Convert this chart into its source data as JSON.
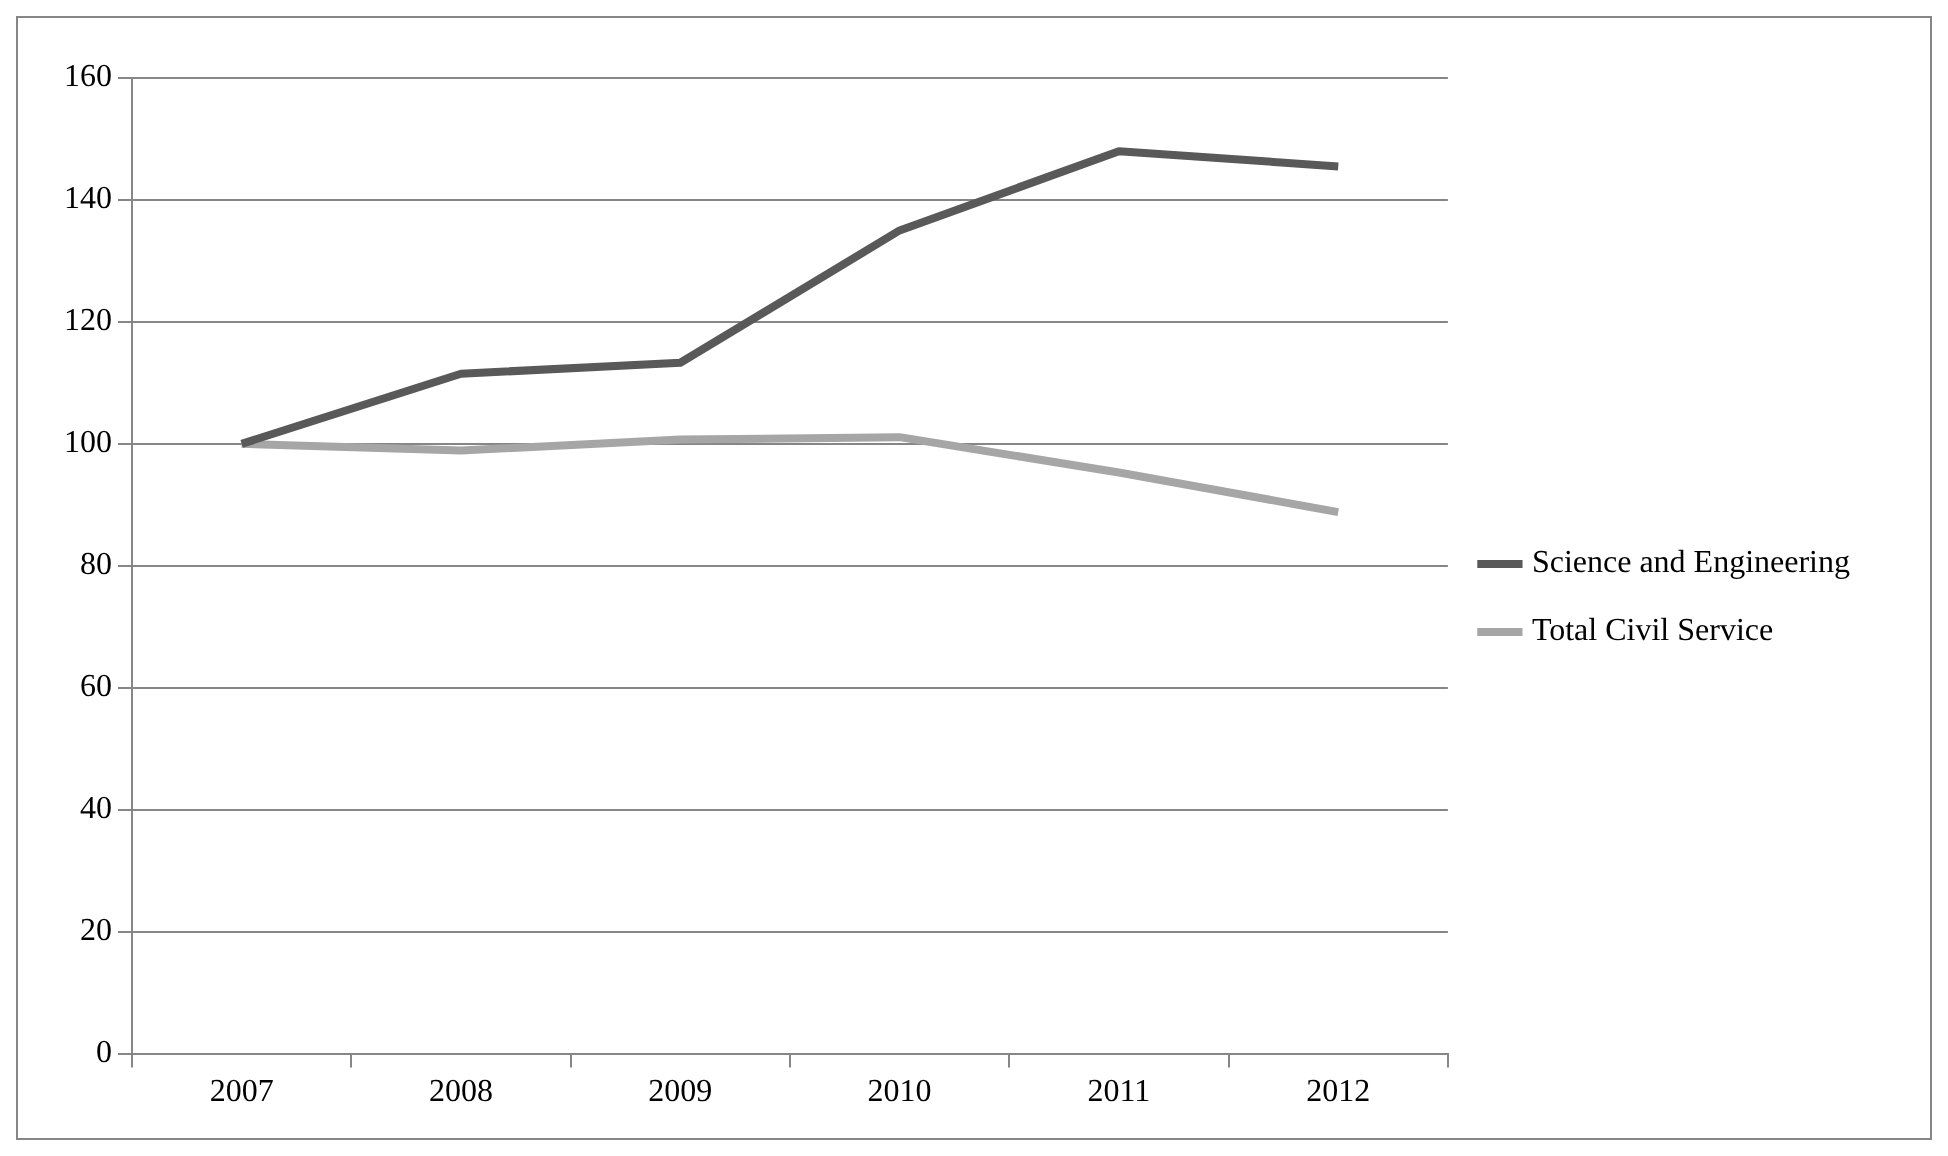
{
  "chart_data": {
    "type": "line",
    "categories": [
      "2007",
      "2008",
      "2009",
      "2010",
      "2011",
      "2012"
    ],
    "series": [
      {
        "name": "Science and Engineering",
        "color": "#595959",
        "values": [
          100,
          111.5,
          113.3,
          135,
          148,
          145.5
        ]
      },
      {
        "name": "Total Civil Service",
        "color": "#a6a6a6",
        "values": [
          100,
          98.9,
          100.7,
          101.1,
          95.3,
          88.8
        ]
      }
    ],
    "ylim": [
      0,
      160
    ],
    "yticks": [
      0,
      20,
      40,
      60,
      80,
      100,
      120,
      140,
      160
    ],
    "grid": "y",
    "legend": "right",
    "marker": "none",
    "line_style": "solid"
  }
}
